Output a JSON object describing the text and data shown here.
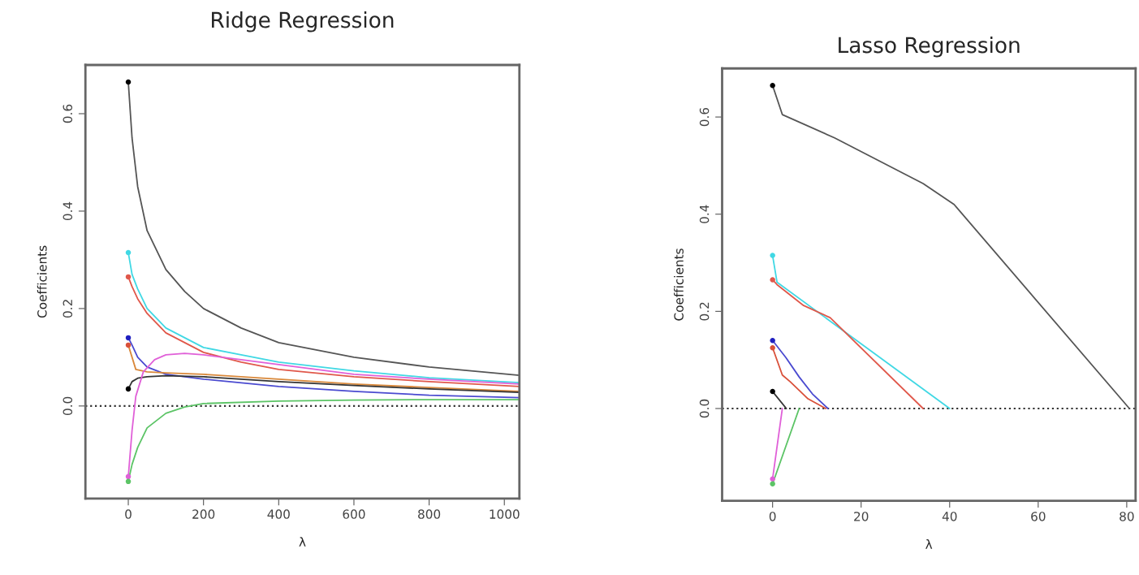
{
  "chart_data": [
    {
      "type": "line",
      "title": "Ridge Regression",
      "xlabel": "λ",
      "ylabel": "Coefficients",
      "xlim": [
        -114,
        1040
      ],
      "ylim": [
        -0.19,
        0.7
      ],
      "xticks": [
        0,
        200,
        400,
        600,
        800,
        1000
      ],
      "yticks": [
        {
          "value": 0,
          "label": "0.0"
        },
        {
          "value": 0.2,
          "label": "0.2"
        },
        {
          "value": 0.4,
          "label": "0.4"
        },
        {
          "value": 0.6,
          "label": "0.6"
        }
      ],
      "grid": false,
      "legend": false,
      "marker": "none",
      "line_style": "solid",
      "ref_lines": [
        {
          "axis": "y",
          "value": 0,
          "color": "#333333",
          "line_style": "dotted"
        }
      ],
      "series": [
        {
          "color": "#555555",
          "x": [
            0,
            10,
            25,
            50,
            100,
            150,
            200,
            300,
            400,
            600,
            800,
            1040
          ],
          "values": [
            0.665,
            0.55,
            0.45,
            0.36,
            0.28,
            0.235,
            0.2,
            0.16,
            0.13,
            0.1,
            0.08,
            0.063
          ]
        },
        {
          "color": "#40d8e4",
          "x": [
            0,
            10,
            25,
            50,
            100,
            200,
            300,
            400,
            600,
            800,
            1040
          ],
          "values": [
            0.315,
            0.27,
            0.24,
            0.2,
            0.16,
            0.12,
            0.105,
            0.09,
            0.072,
            0.058,
            0.048
          ]
        },
        {
          "color": "#e0584b",
          "x": [
            0,
            10,
            25,
            50,
            100,
            200,
            300,
            400,
            600,
            800,
            1040
          ],
          "values": [
            0.265,
            0.245,
            0.22,
            0.19,
            0.15,
            0.11,
            0.09,
            0.075,
            0.06,
            0.05,
            0.04
          ]
        },
        {
          "color": "#4a4ad0",
          "x": [
            0,
            10,
            25,
            50,
            100,
            200,
            400,
            600,
            800,
            1040
          ],
          "values": [
            0.14,
            0.125,
            0.1,
            0.08,
            0.065,
            0.055,
            0.04,
            0.03,
            0.022,
            0.017
          ]
        },
        {
          "color": "#d9883a",
          "x": [
            0,
            10,
            20,
            50,
            100,
            200,
            400,
            600,
            800,
            1040
          ],
          "values": [
            0.125,
            0.1,
            0.075,
            0.07,
            0.068,
            0.065,
            0.055,
            0.045,
            0.038,
            0.03
          ]
        },
        {
          "color": "#333333",
          "x": [
            0,
            10,
            25,
            50,
            100,
            200,
            400,
            600,
            800,
            1040
          ],
          "values": [
            0.035,
            0.05,
            0.057,
            0.06,
            0.062,
            0.06,
            0.05,
            0.042,
            0.035,
            0.028
          ]
        },
        {
          "color": "#e060d8",
          "x": [
            0,
            10,
            20,
            40,
            70,
            100,
            150,
            200,
            300,
            400,
            600,
            800,
            1040
          ],
          "values": [
            -0.145,
            -0.05,
            0.02,
            0.07,
            0.095,
            0.105,
            0.108,
            0.105,
            0.095,
            0.085,
            0.065,
            0.055,
            0.045
          ]
        },
        {
          "color": "#5cc466",
          "x": [
            0,
            10,
            25,
            50,
            100,
            150,
            200,
            400,
            600,
            800,
            1040
          ],
          "values": [
            -0.155,
            -0.12,
            -0.085,
            -0.045,
            -0.015,
            -0.002,
            0.005,
            0.01,
            0.012,
            0.013,
            0.013
          ]
        },
        {
          "type": "scatter",
          "marker": "circle",
          "x": [
            0,
            0,
            0,
            0,
            0,
            0,
            0,
            0
          ],
          "values": [
            0.665,
            0.315,
            0.265,
            0.14,
            0.125,
            0.035,
            -0.145,
            -0.155
          ],
          "colors": [
            "#000000",
            "#40d8e4",
            "#e0584b",
            "#2020c0",
            "#d9503a",
            "#000000",
            "#e060d8",
            "#5cc466"
          ]
        }
      ]
    },
    {
      "type": "line",
      "title": "Lasso Regression",
      "xlabel": "λ",
      "ylabel": "Coefficients",
      "xlim": [
        -11.4,
        82
      ],
      "ylim": [
        -0.19,
        0.7
      ],
      "xticks": [
        0,
        20,
        40,
        60,
        80
      ],
      "yticks": [
        {
          "value": 0,
          "label": "0.0"
        },
        {
          "value": 0.2,
          "label": "0.2"
        },
        {
          "value": 0.4,
          "label": "0.4"
        },
        {
          "value": 0.6,
          "label": "0.6"
        }
      ],
      "grid": false,
      "legend": false,
      "marker": "none",
      "line_style": "solid",
      "ref_lines": [
        {
          "axis": "y",
          "value": 0,
          "color": "#333333",
          "line_style": "dotted"
        }
      ],
      "series": [
        {
          "color": "#555555",
          "x": [
            0,
            2.2,
            14,
            34,
            41,
            80.6
          ],
          "values": [
            0.665,
            0.605,
            0.557,
            0.463,
            0.42,
            0
          ]
        },
        {
          "color": "#40d8e4",
          "x": [
            0,
            1,
            40
          ],
          "values": [
            0.315,
            0.26,
            0
          ]
        },
        {
          "color": "#e0584b",
          "x": [
            0,
            1,
            7,
            13,
            34
          ],
          "values": [
            0.265,
            0.255,
            0.212,
            0.187,
            0
          ]
        },
        {
          "color": "#4a4ad0",
          "x": [
            0,
            3,
            6,
            9,
            12.5
          ],
          "values": [
            0.14,
            0.105,
            0.065,
            0.03,
            0
          ]
        },
        {
          "color": "#d9503a",
          "x": [
            0,
            2.2,
            4,
            8,
            12
          ],
          "values": [
            0.125,
            0.069,
            0.055,
            0.02,
            0
          ]
        },
        {
          "color": "#333333",
          "x": [
            0,
            3.1
          ],
          "values": [
            0.035,
            0
          ]
        },
        {
          "color": "#e060d8",
          "x": [
            0,
            2.2
          ],
          "values": [
            -0.145,
            0
          ]
        },
        {
          "color": "#5cc466",
          "x": [
            0,
            6
          ],
          "values": [
            -0.155,
            0
          ]
        },
        {
          "type": "scatter",
          "marker": "circle",
          "x": [
            0,
            0,
            0,
            0,
            0,
            0,
            0,
            0
          ],
          "values": [
            0.665,
            0.315,
            0.265,
            0.14,
            0.125,
            0.035,
            -0.145,
            -0.155
          ],
          "colors": [
            "#000000",
            "#40d8e4",
            "#e0584b",
            "#2020c0",
            "#d9503a",
            "#000000",
            "#e060d8",
            "#5cc466"
          ]
        }
      ]
    }
  ]
}
